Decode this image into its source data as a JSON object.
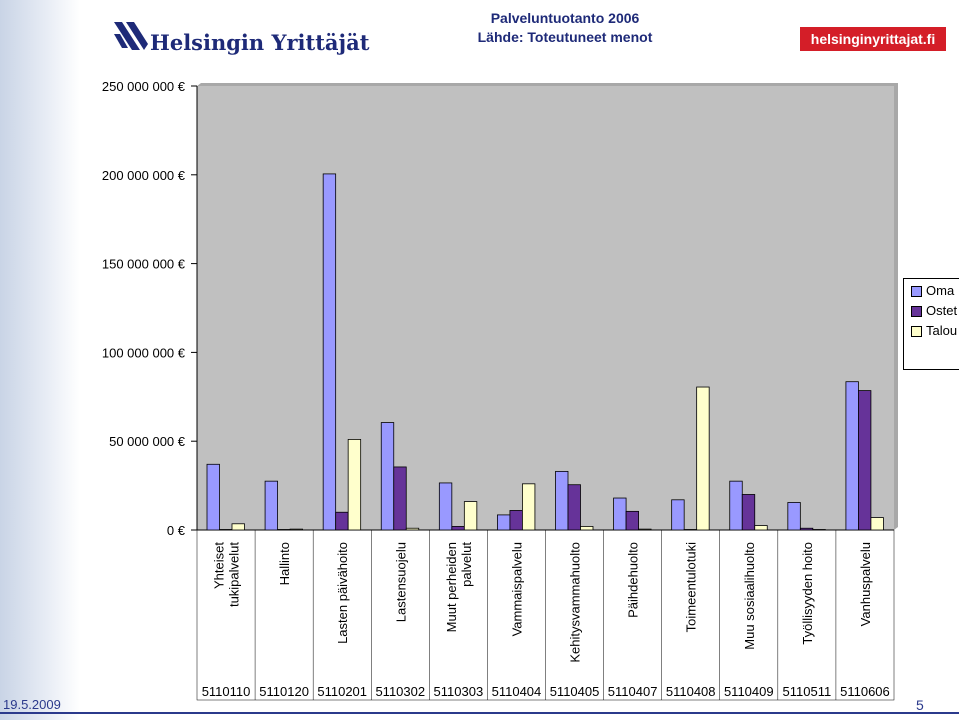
{
  "header": {
    "title": "Palveluntuotanto 2006",
    "subtitle": "Lähde: Toteutuneet menot",
    "logo_left_text": "Helsingin Yrittäjät",
    "logo_right_text": "helsinginyrittajat.fi"
  },
  "footer": {
    "date": "19.5.2009",
    "page": "5"
  },
  "colors": {
    "plot_background": "#c0c0c0",
    "series_1": "#9999ff",
    "series_2": "#663399",
    "series_3": "#ffffcc"
  },
  "chart_data": {
    "type": "bar",
    "title": "",
    "xlabel": "",
    "ylabel": "",
    "ylim": [
      0,
      250000000
    ],
    "y_ticks": [
      0,
      50000000,
      100000000,
      150000000,
      200000000,
      250000000
    ],
    "y_tick_labels": [
      "0 €",
      "50 000 000 €",
      "100 000 000 €",
      "150 000 000 €",
      "200 000 000 €",
      "250 000 000 €"
    ],
    "grid": false,
    "legend_position": "right",
    "categories": [
      "Yhteiset tukipalvelut",
      "Hallinto",
      "Lasten päivähoito",
      "Lastensuojelu",
      "Muut perheiden palvelut",
      "Vammaispalvelu",
      "Kehitysvammahuolto",
      "Päihdehuolto",
      "Toimeentulotuki",
      "Muu sosiaalihuolto",
      "Työllisyyden hoito",
      "Vanhuspalvelu"
    ],
    "codes": [
      "5110110",
      "5110120",
      "5110201",
      "5110302",
      "5110303",
      "5110404",
      "5110405",
      "5110407",
      "5110408",
      "5110409",
      "5110511",
      "5110606"
    ],
    "series": [
      {
        "name": "Oma",
        "values": [
          37000000,
          27500000,
          200500000,
          60500000,
          26500000,
          8500000,
          33000000,
          18000000,
          17000000,
          27500000,
          15500000,
          83500000
        ]
      },
      {
        "name": "Ostet",
        "values": [
          0,
          0,
          10000000,
          35500000,
          2000000,
          11000000,
          25500000,
          10500000,
          0,
          20000000,
          1000000,
          78500000
        ]
      },
      {
        "name": "Talou",
        "values": [
          3500000,
          500000,
          51000000,
          1000000,
          16000000,
          26000000,
          2000000,
          500000,
          80500000,
          2500000,
          0,
          7000000
        ]
      }
    ]
  }
}
